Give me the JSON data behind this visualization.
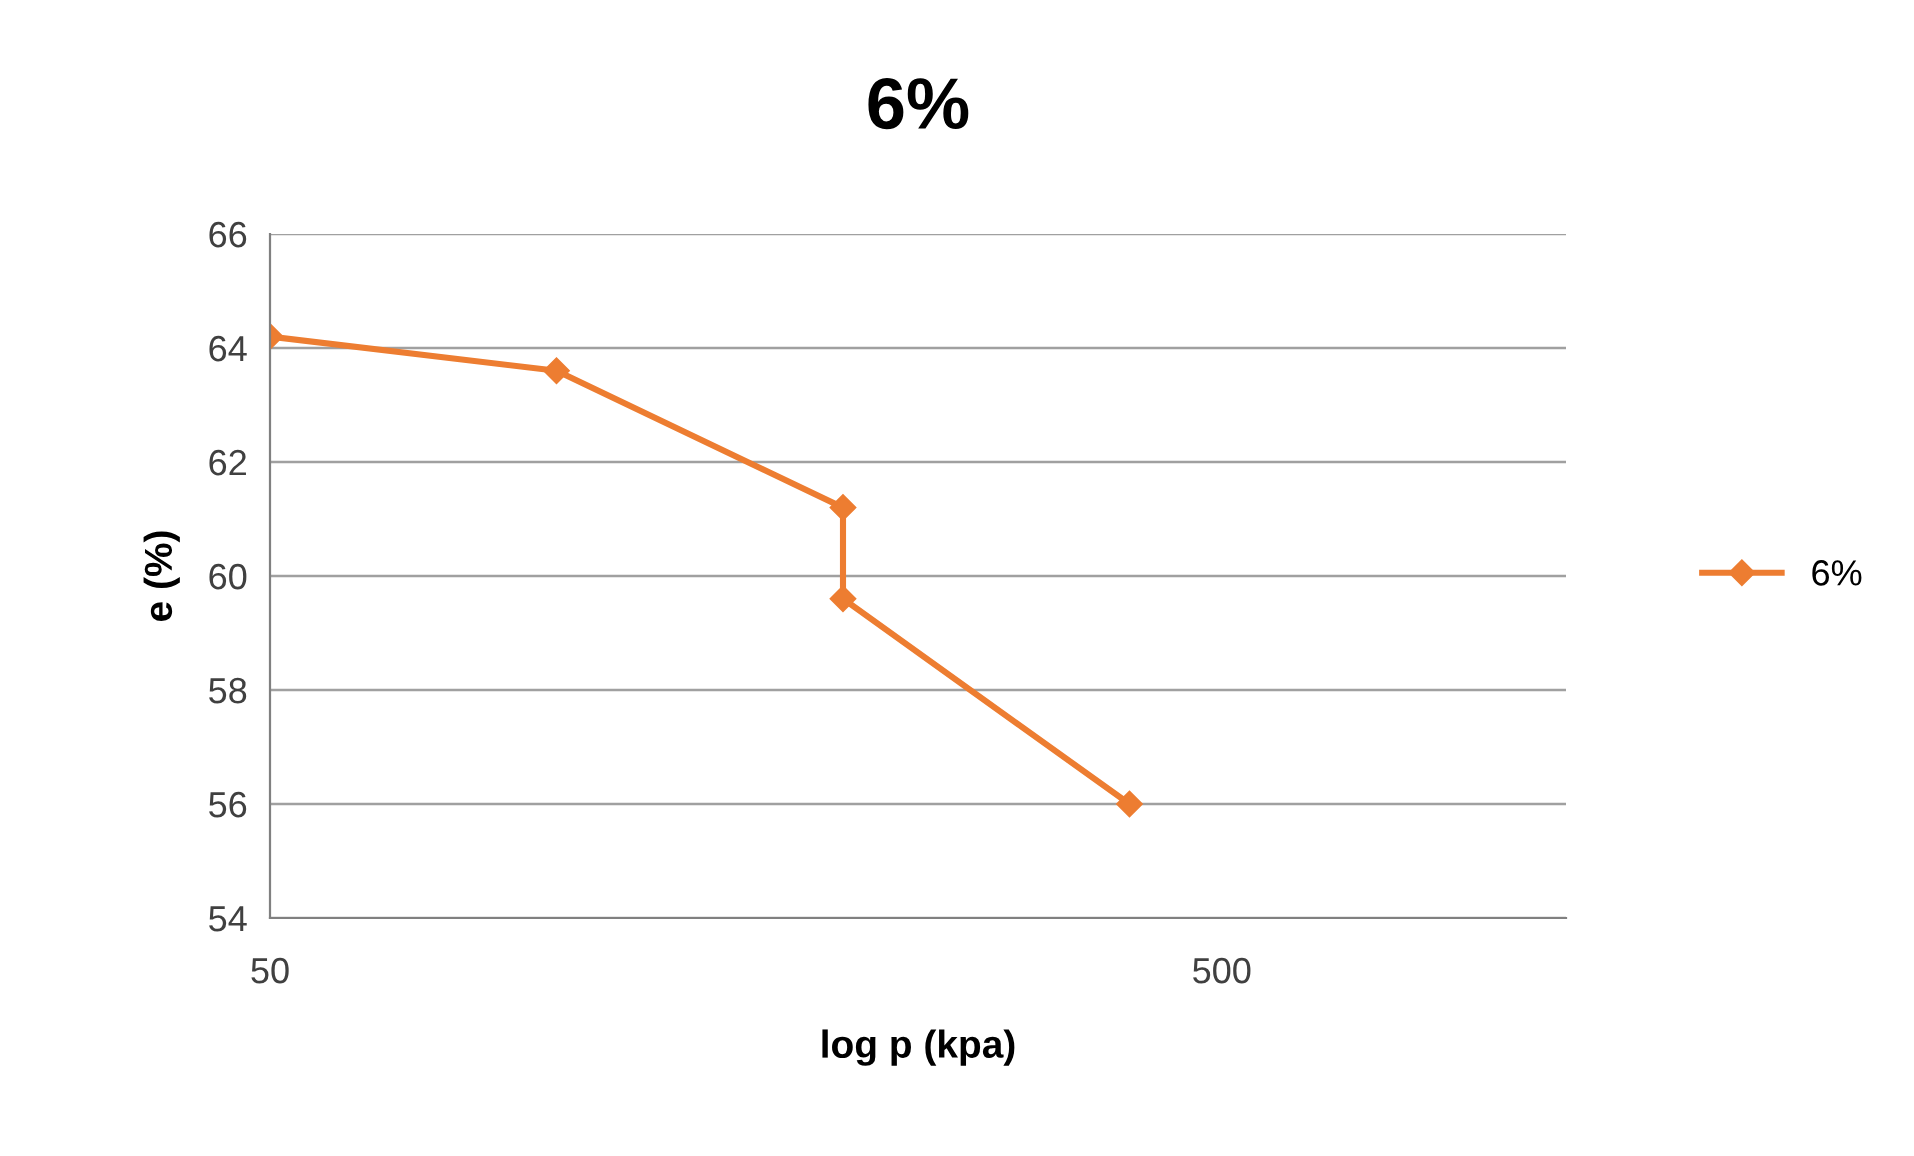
{
  "chart_data": {
    "type": "line",
    "title": "6%",
    "xlabel": "log p (kpa)",
    "ylabel": "e (%)",
    "x": [
      50,
      100,
      200,
      200,
      400
    ],
    "series": [
      {
        "name": "6%",
        "color": "#ed7d31",
        "values": [
          64.2,
          63.6,
          61.2,
          59.6,
          56.0
        ]
      }
    ],
    "log": "x",
    "xlim": [
      50,
      1150
    ],
    "xticks": [
      50,
      500
    ],
    "ylim": [
      54,
      66
    ],
    "yticks": [
      54,
      56,
      58,
      60,
      62,
      64,
      66
    ],
    "grid": "y",
    "legend": "right",
    "marker": "diamond",
    "line_style": "solid"
  }
}
